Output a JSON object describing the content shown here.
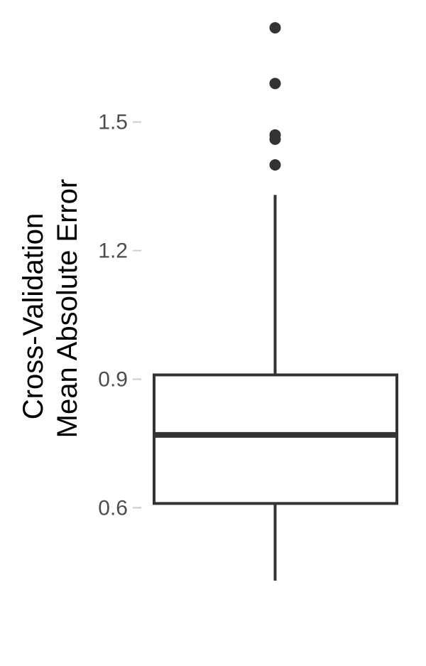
{
  "chart_data": {
    "type": "boxplot",
    "title": "",
    "xlabel": "",
    "ylabel_lines": [
      "Cross-Validation",
      "Mean Absolute Error"
    ],
    "y_ticks": [
      0.6,
      0.9,
      1.2,
      1.5
    ],
    "y_tick_labels": [
      "0.6",
      "0.9",
      "1.2",
      "1.5"
    ],
    "ylim": [
      0.38,
      1.75
    ],
    "grid": false,
    "legend": "none",
    "box": {
      "whisker_low": 0.43,
      "q1": 0.61,
      "median": 0.77,
      "q3": 0.91,
      "whisker_high": 1.33
    },
    "outliers": [
      1.4,
      1.46,
      1.47,
      1.59,
      1.72
    ],
    "colors": {
      "box_line": "#333333",
      "outlier": "#333333",
      "tick_label": "#4d4d4d",
      "tick_mark": "#cccccc",
      "axis_title": "#000000",
      "background": "#ffffff"
    }
  }
}
